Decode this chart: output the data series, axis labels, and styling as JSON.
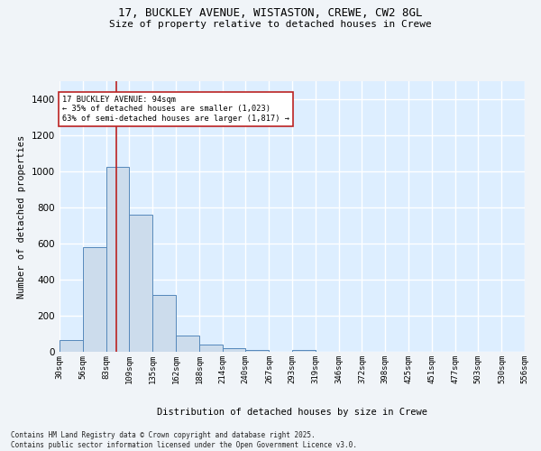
{
  "title_line1": "17, BUCKLEY AVENUE, WISTASTON, CREWE, CW2 8GL",
  "title_line2": "Size of property relative to detached houses in Crewe",
  "xlabel": "Distribution of detached houses by size in Crewe",
  "ylabel": "Number of detached properties",
  "bar_color": "#ccdcec",
  "bar_edge_color": "#5588bb",
  "background_color": "#ddeeff",
  "fig_background_color": "#f0f4f8",
  "grid_color": "#ffffff",
  "bin_labels": [
    "30sqm",
    "56sqm",
    "83sqm",
    "109sqm",
    "135sqm",
    "162sqm",
    "188sqm",
    "214sqm",
    "240sqm",
    "267sqm",
    "293sqm",
    "319sqm",
    "346sqm",
    "372sqm",
    "398sqm",
    "425sqm",
    "451sqm",
    "477sqm",
    "503sqm",
    "530sqm",
    "556sqm"
  ],
  "bin_edges": [
    30,
    56,
    83,
    109,
    135,
    162,
    188,
    214,
    240,
    267,
    293,
    319,
    346,
    372,
    398,
    425,
    451,
    477,
    503,
    530,
    556
  ],
  "counts": [
    65,
    580,
    1023,
    762,
    315,
    90,
    38,
    22,
    12,
    0,
    12,
    0,
    0,
    0,
    0,
    0,
    0,
    0,
    0,
    0
  ],
  "property_size": 94,
  "property_label": "17 BUCKLEY AVENUE: 94sqm",
  "annotation_line2": "← 35% of detached houses are smaller (1,023)",
  "annotation_line3": "63% of semi-detached houses are larger (1,817) →",
  "red_line_color": "#bb2222",
  "annotation_box_edge_color": "#bb2222",
  "ylim_max": 1500,
  "yticks": [
    0,
    200,
    400,
    600,
    800,
    1000,
    1200,
    1400
  ],
  "footnote_line1": "Contains HM Land Registry data © Crown copyright and database right 2025.",
  "footnote_line2": "Contains public sector information licensed under the Open Government Licence v3.0."
}
